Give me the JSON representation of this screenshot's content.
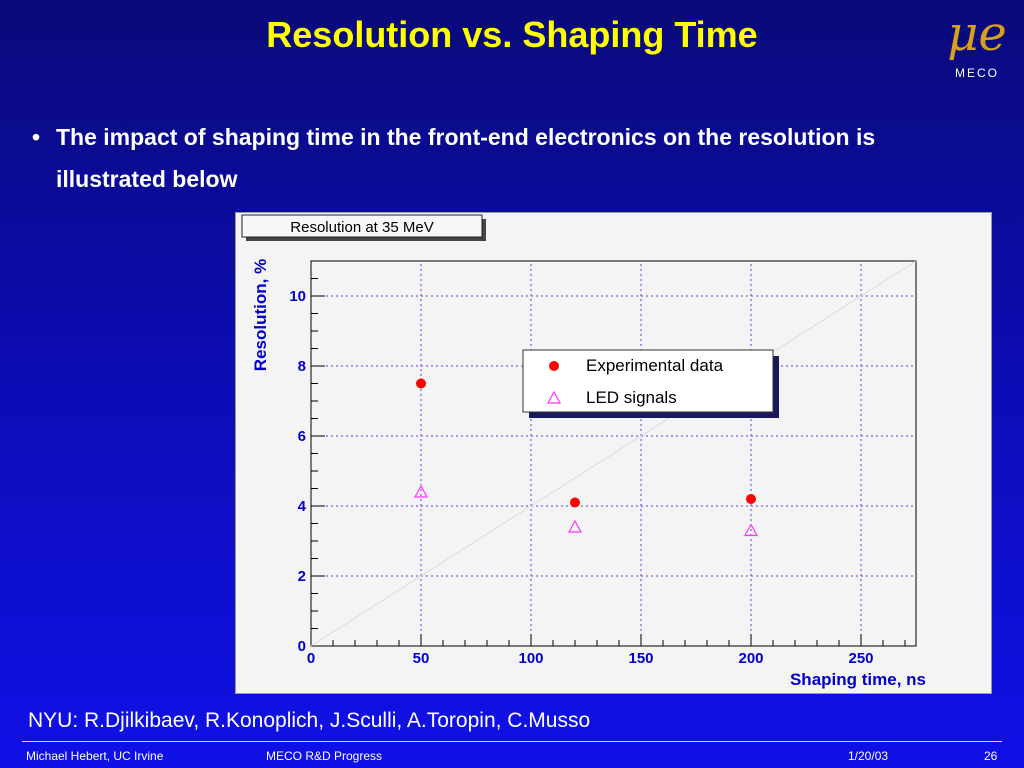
{
  "slide": {
    "title": "Resolution vs. Shaping Time",
    "logo_symbol": "μe",
    "logo_text": "MECO",
    "bullet_char": "•",
    "bullet_text": "The impact of shaping time in the front-end electronics on the resolution is illustrated below",
    "credits": "NYU: R.Djilkibaev, R.Konoplich, J.Sculli, A.Toropin, C.Musso"
  },
  "footer": {
    "author": "Michael Hebert, UC Irvine",
    "talk": "MECO R&D Progress",
    "date": "1/20/03",
    "page": "26"
  },
  "colors": {
    "title": "#ffff00",
    "axis_labels": "#0000cc",
    "experimental": "#ff0000",
    "led": "#ff33ff",
    "grid": "#4a4af0"
  },
  "chart_data": {
    "type": "scatter",
    "title": "Resolution at 35 MeV",
    "xlabel": "Shaping time, ns",
    "ylabel": "Resolution, %",
    "xlim": [
      0,
      275
    ],
    "ylim": [
      0,
      11
    ],
    "xticks": [
      0,
      50,
      100,
      150,
      200,
      250
    ],
    "yticks": [
      0,
      2,
      4,
      6,
      8,
      10
    ],
    "grid": true,
    "legend_position": "top-right",
    "series": [
      {
        "name": "Experimental data",
        "marker": "circle",
        "color": "#ff0000",
        "x": [
          50,
          120,
          200
        ],
        "y": [
          7.5,
          4.1,
          4.2
        ]
      },
      {
        "name": "LED signals",
        "marker": "triangle-open",
        "color": "#ff33ff",
        "x": [
          50,
          120,
          200
        ],
        "y": [
          4.4,
          3.4,
          3.3
        ]
      }
    ]
  }
}
